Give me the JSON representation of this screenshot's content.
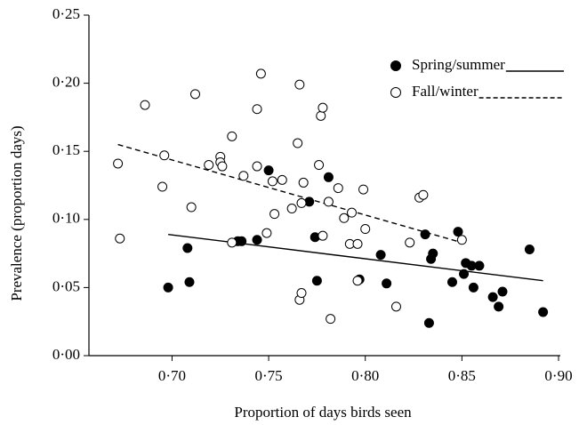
{
  "chart_data": {
    "type": "scatter",
    "x_label": "Proportion of days birds seen",
    "y_label": "Prevalence (proportion days)",
    "xlim": [
      0.657,
      0.9
    ],
    "ylim": [
      0,
      0.25
    ],
    "xticks": [
      {
        "value": 0.7,
        "label": "0·70"
      },
      {
        "value": 0.75,
        "label": "0·75"
      },
      {
        "value": 0.8,
        "label": "0·80"
      },
      {
        "value": 0.85,
        "label": "0·85"
      },
      {
        "value": 0.9,
        "label": "0·90"
      }
    ],
    "yticks": [
      {
        "value": 0,
        "label": "0·00"
      },
      {
        "value": 0.05,
        "label": "0·05"
      },
      {
        "value": 0.1,
        "label": "0·10"
      },
      {
        "value": 0.15,
        "label": "0·15"
      },
      {
        "value": 0.2,
        "label": "0·20"
      },
      {
        "value": 0.25,
        "label": "0·25"
      }
    ],
    "grid": false,
    "series": [
      {
        "name": "Spring/summer",
        "color": "#000000",
        "filled": true,
        "dashed": false,
        "x": [
          0.698,
          0.708,
          0.709,
          0.734,
          0.736,
          0.744,
          0.75,
          0.771,
          0.774,
          0.775,
          0.781,
          0.797,
          0.808,
          0.811,
          0.831,
          0.834,
          0.835,
          0.833,
          0.845,
          0.848,
          0.851,
          0.852,
          0.855,
          0.856,
          0.859,
          0.866,
          0.869,
          0.871,
          0.885,
          0.892
        ],
        "values": [
          0.05,
          0.079,
          0.054,
          0.084,
          0.084,
          0.085,
          0.136,
          0.113,
          0.087,
          0.055,
          0.131,
          0.056,
          0.074,
          0.053,
          0.089,
          0.071,
          0.075,
          0.024,
          0.054,
          0.091,
          0.06,
          0.068,
          0.066,
          0.05,
          0.066,
          0.043,
          0.036,
          0.047,
          0.078,
          0.032
        ],
        "trend": {
          "x": [
            0.698,
            0.892
          ],
          "y": [
            0.089,
            0.055
          ]
        }
      },
      {
        "name": "Fall/winter",
        "color": "#000000",
        "filled": false,
        "dashed": true,
        "x": [
          0.672,
          0.673,
          0.686,
          0.695,
          0.696,
          0.71,
          0.712,
          0.719,
          0.725,
          0.725,
          0.726,
          0.731,
          0.731,
          0.737,
          0.744,
          0.744,
          0.746,
          0.749,
          0.752,
          0.753,
          0.757,
          0.762,
          0.765,
          0.766,
          0.766,
          0.767,
          0.767,
          0.768,
          0.776,
          0.777,
          0.778,
          0.778,
          0.781,
          0.782,
          0.786,
          0.789,
          0.792,
          0.793,
          0.796,
          0.796,
          0.799,
          0.8,
          0.816,
          0.823,
          0.828,
          0.83,
          0.85
        ],
        "values": [
          0.141,
          0.086,
          0.184,
          0.124,
          0.147,
          0.109,
          0.192,
          0.14,
          0.146,
          0.142,
          0.139,
          0.083,
          0.161,
          0.132,
          0.181,
          0.139,
          0.207,
          0.09,
          0.128,
          0.104,
          0.129,
          0.108,
          0.156,
          0.041,
          0.199,
          0.046,
          0.112,
          0.127,
          0.14,
          0.176,
          0.182,
          0.088,
          0.113,
          0.027,
          0.123,
          0.101,
          0.082,
          0.105,
          0.055,
          0.082,
          0.122,
          0.093,
          0.036,
          0.083,
          0.116,
          0.118,
          0.085
        ],
        "trend": {
          "x": [
            0.672,
            0.85
          ],
          "y": [
            0.155,
            0.083
          ]
        }
      }
    ]
  }
}
